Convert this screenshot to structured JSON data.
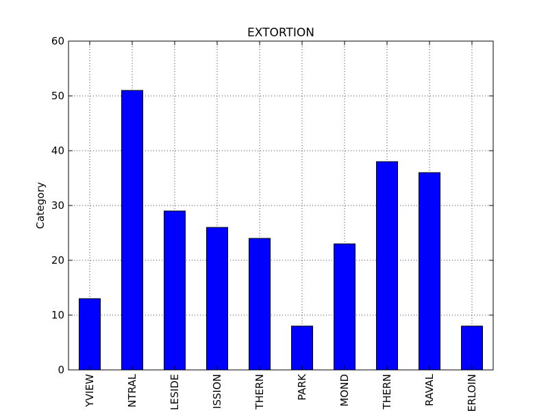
{
  "chart_data": {
    "type": "bar",
    "title": "EXTORTION",
    "xlabel": "",
    "ylabel": "Category",
    "categories": [
      "YVIEW",
      "NTRAL",
      "LESIDE",
      "ISSION",
      "THERN",
      "PARK",
      "MOND",
      "THERN",
      "RAVAL",
      "ERLOIN"
    ],
    "values": [
      13,
      51,
      29,
      26,
      24,
      8,
      23,
      38,
      36,
      8
    ],
    "ylim": [
      0,
      60
    ],
    "yticks": [
      0,
      10,
      20,
      30,
      40,
      50,
      60
    ],
    "grid": true,
    "legend": "none",
    "bar_color": "#0000ff",
    "edge_color": "#000000"
  }
}
